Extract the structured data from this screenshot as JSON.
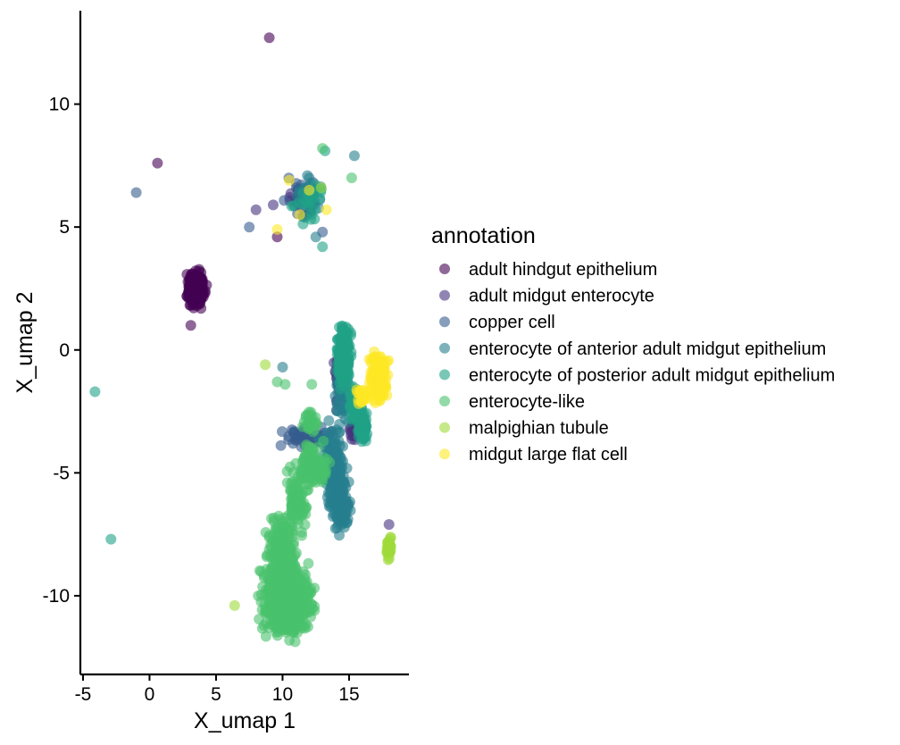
{
  "chart_data": {
    "type": "scatter",
    "title": "",
    "xlabel": "X_umap 1",
    "ylabel": "X_umap 2",
    "xlim": [
      -5.2,
      19.5
    ],
    "ylim": [
      -13.2,
      13.8
    ],
    "xticks": [
      -5,
      0,
      5,
      10,
      15
    ],
    "yticks": [
      10,
      5,
      0,
      -5,
      -10
    ],
    "xtick_labels": [
      "-5",
      "0",
      "5",
      "10",
      "15"
    ],
    "ytick_labels": [
      "10",
      "5",
      "0",
      "-5",
      "-10"
    ],
    "grid": false,
    "legend_title": "annotation",
    "legend_position": "right",
    "series": [
      {
        "name": "adult hindgut epithelium",
        "color": "#440154",
        "points": [
          [
            9.0,
            12.7
          ],
          [
            0.6,
            7.6
          ],
          [
            3.5,
            2.5
          ],
          [
            3.1,
            1.0
          ],
          [
            12.0,
            5.6
          ],
          [
            9.6,
            4.6
          ]
        ],
        "clusters": [
          [
            3.5,
            2.5,
            0.5,
            0.55,
            320
          ]
        ]
      },
      {
        "name": "adult midgut enterocyte",
        "color": "#46337E",
        "points": [
          [
            8.0,
            5.7
          ],
          [
            9.3,
            5.9
          ],
          [
            18.0,
            -7.1
          ],
          [
            14.2,
            -1.5
          ],
          [
            14.3,
            -0.3
          ],
          [
            15.4,
            -3.5
          ]
        ],
        "clusters": [
          [
            14.2,
            -1.2,
            0.25,
            1.0,
            45
          ],
          [
            15.3,
            -3.3,
            0.25,
            0.3,
            15
          ],
          [
            11.0,
            6.0,
            1.0,
            0.6,
            15
          ]
        ]
      },
      {
        "name": "copper cell",
        "color": "#365C8D",
        "points": [
          [
            -1.0,
            6.4
          ],
          [
            7.5,
            5.0
          ],
          [
            13.0,
            4.8
          ]
        ],
        "clusters": [
          [
            11.8,
            -3.5,
            1.6,
            0.3,
            60
          ],
          [
            11.5,
            6.3,
            1.0,
            0.7,
            15
          ]
        ]
      },
      {
        "name": "enterocyte of anterior adult midgut epithelium",
        "color": "#277F8E",
        "points": [
          [
            10.0,
            -0.7
          ],
          [
            12.0,
            7.0
          ],
          [
            15.4,
            7.9
          ],
          [
            12.5,
            4.6
          ]
        ],
        "clusters": [
          [
            13.8,
            -4.8,
            0.7,
            1.2,
            180
          ],
          [
            14.4,
            -6.3,
            0.55,
            0.85,
            120
          ],
          [
            14.6,
            -2.0,
            0.5,
            0.8,
            50
          ],
          [
            12.0,
            6.3,
            0.9,
            0.6,
            30
          ]
        ]
      },
      {
        "name": "enterocyte of posterior adult midgut epithelium",
        "color": "#1FA187",
        "points": [
          [
            -2.9,
            -7.7
          ],
          [
            -4.1,
            -1.7
          ],
          [
            13.0,
            4.2
          ],
          [
            13.2,
            8.1
          ]
        ],
        "clusters": [
          [
            14.6,
            -0.2,
            0.4,
            1.1,
            170
          ],
          [
            16.0,
            -3.0,
            0.3,
            0.5,
            80
          ],
          [
            15.4,
            -2.2,
            0.35,
            0.55,
            70
          ],
          [
            12.0,
            6.0,
            0.8,
            0.7,
            25
          ]
        ]
      },
      {
        "name": "enterocyte-like",
        "color": "#4AC16D",
        "points": [
          [
            9.6,
            -1.3
          ],
          [
            10.2,
            -1.4
          ],
          [
            12.2,
            -1.4
          ],
          [
            13.0,
            8.2
          ],
          [
            15.2,
            7.0
          ]
        ],
        "clusters": [
          [
            10.4,
            -10.2,
            1.4,
            1.1,
            700
          ],
          [
            10.0,
            -8.4,
            0.8,
            1.2,
            220
          ],
          [
            11.0,
            -6.2,
            0.55,
            1.0,
            100
          ],
          [
            12.2,
            -4.8,
            0.9,
            0.7,
            110
          ],
          [
            12.0,
            -2.9,
            0.5,
            0.35,
            30
          ]
        ]
      },
      {
        "name": "malpighian tubule",
        "color": "#9FDA3A",
        "points": [
          [
            8.7,
            -0.6
          ],
          [
            6.4,
            -10.4
          ],
          [
            12.9,
            6.6
          ]
        ],
        "clusters": [
          [
            18.0,
            -8.0,
            0.15,
            0.35,
            30
          ]
        ]
      },
      {
        "name": "midgut large flat cell",
        "color": "#FDE725",
        "points": [
          [
            11.3,
            5.5
          ],
          [
            9.6,
            4.9
          ],
          [
            12.0,
            6.5
          ],
          [
            13.3,
            5.7
          ],
          [
            10.5,
            6.9
          ]
        ],
        "clusters": [
          [
            17.2,
            -1.2,
            0.55,
            0.75,
            140
          ],
          [
            16.0,
            -1.9,
            0.4,
            0.25,
            25
          ]
        ]
      }
    ]
  }
}
